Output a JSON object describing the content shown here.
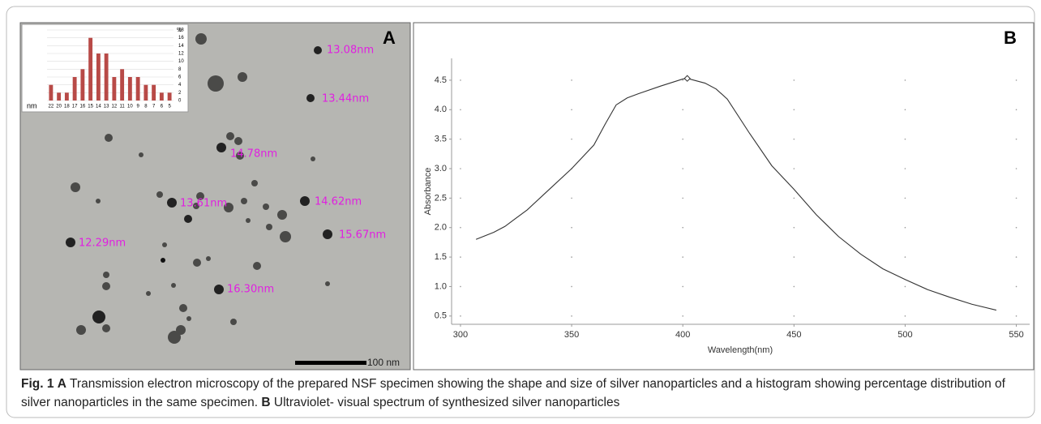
{
  "panel_a": {
    "letter": "A",
    "particle_labels": [
      "13.08nm",
      "13.44nm",
      "14.78nm",
      "13.61nm",
      "14.62nm",
      "15.67nm",
      "12.29nm",
      "16.30nm"
    ],
    "scale_bar": "100 nm"
  },
  "panel_b": {
    "letter": "B"
  },
  "chart_data": [
    {
      "type": "bar",
      "x_label": "nm",
      "y_label": "%",
      "categories": [
        "22",
        "20",
        "18",
        "17",
        "16",
        "15",
        "14",
        "13",
        "12",
        "11",
        "10",
        "9",
        "8",
        "7",
        "6",
        "5"
      ],
      "values": [
        4,
        2,
        2,
        6,
        8,
        16,
        12,
        12,
        6,
        8,
        6,
        6,
        4,
        4,
        2,
        2
      ],
      "color": "#b84a47",
      "ylim": [
        0,
        18
      ],
      "yticks": [
        0,
        2,
        4,
        6,
        8,
        10,
        12,
        14,
        16,
        18
      ],
      "grid": true
    },
    {
      "type": "line",
      "x_label": "Wavelength(nm)",
      "y_label": "Absorbance",
      "x": [
        307,
        315,
        320,
        330,
        340,
        350,
        360,
        365,
        370,
        375,
        380,
        390,
        400,
        402,
        410,
        415,
        420,
        430,
        440,
        450,
        460,
        470,
        480,
        490,
        500,
        510,
        520,
        530,
        541
      ],
      "values": [
        1.8,
        1.92,
        2.02,
        2.3,
        2.65,
        3.0,
        3.4,
        3.75,
        4.08,
        4.2,
        4.27,
        4.4,
        4.52,
        4.53,
        4.45,
        4.35,
        4.18,
        3.6,
        3.05,
        2.65,
        2.22,
        1.85,
        1.55,
        1.3,
        1.12,
        0.95,
        0.82,
        0.7,
        0.6
      ],
      "color": "#333333",
      "xlim": [
        296,
        556
      ],
      "ylim": [
        0.36,
        4.87
      ],
      "xticks": [
        300,
        350,
        400,
        450,
        500,
        550
      ],
      "yticks": [
        0.5,
        {
          "value": 1,
          "label": "1.0"
        },
        1.5,
        {
          "value": 2,
          "label": "2.0"
        },
        2.5,
        {
          "value": 3,
          "label": "3.0"
        },
        3.5,
        {
          "value": 4,
          "label": "4.0"
        },
        4.5
      ],
      "grid": "dotted"
    }
  ],
  "caption": {
    "figure": "Fig. 1",
    "a_letter": "A",
    "a_text": "Transmission electron microscopy of the prepared NSF specimen showing the shape and size of silver nanoparticles and a histogram showing percentage distribution of silver nanoparticles in the same specimen.",
    "b_letter": "B",
    "b_text": "Ultraviolet- visual spectrum of synthesized silver nanoparticles"
  }
}
